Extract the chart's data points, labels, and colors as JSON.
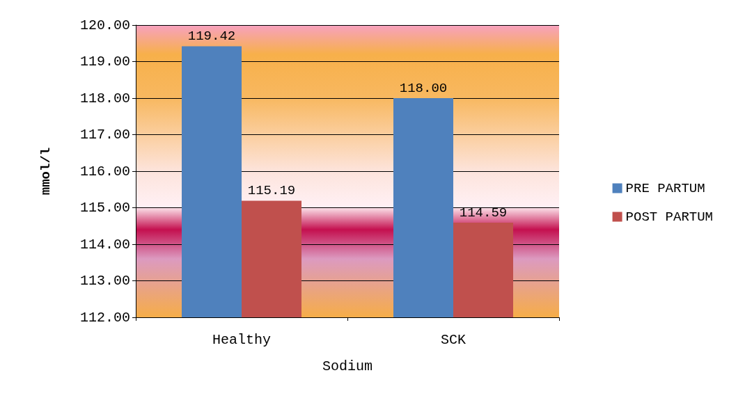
{
  "chart_data": {
    "type": "bar",
    "xlabel": "Sodium",
    "ylabel": "mmol/l",
    "categories": [
      "Healthy",
      "SCK"
    ],
    "series": [
      {
        "name": "PRE PARTUM",
        "color": "#4f81bd",
        "values": [
          119.42,
          118.0
        ],
        "value_labels": [
          "119.42",
          "118.00"
        ]
      },
      {
        "name": "POST PARTUM",
        "color": "#c0504d",
        "values": [
          115.19,
          114.59
        ],
        "value_labels": [
          "115.19",
          "114.59"
        ]
      }
    ],
    "ylim": [
      112,
      120
    ],
    "yticks": [
      {
        "value": 112,
        "label": "112.00"
      },
      {
        "value": 113,
        "label": "113.00"
      },
      {
        "value": 114,
        "label": "114.00"
      },
      {
        "value": 115,
        "label": "115.00"
      },
      {
        "value": 116,
        "label": "116.00"
      },
      {
        "value": 117,
        "label": "117.00"
      },
      {
        "value": 118,
        "label": "118.00"
      },
      {
        "value": 119,
        "label": "119.00"
      },
      {
        "value": 120,
        "label": "120.00"
      }
    ],
    "grid": "y",
    "legend": "right"
  }
}
